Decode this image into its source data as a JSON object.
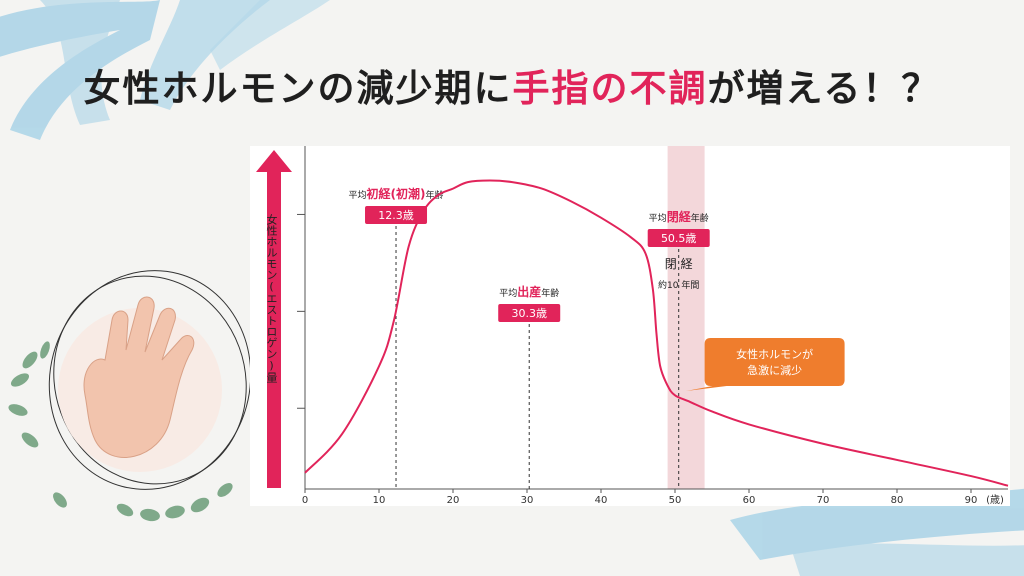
{
  "title": {
    "part1": "女性ホルモンの減少期に",
    "accent": "手指の不調",
    "part2": "が増える！？"
  },
  "colors": {
    "accent": "#e1245a",
    "callout": "#ef7d2d",
    "band": "#f3d7da",
    "brush": "#a9d3e7"
  },
  "chart_data": {
    "type": "line",
    "title": "",
    "ylabel": "女性ホルモン(エストロゲン)量",
    "xlabel": "",
    "x_unit": "(歳)",
    "xlim": [
      0,
      95
    ],
    "ylim": [
      0,
      100
    ],
    "x_ticks": [
      "0",
      "10",
      "20",
      "30",
      "40",
      "50",
      "60",
      "70",
      "80",
      "90"
    ],
    "series": [
      {
        "x": [
          0,
          5,
          10,
          12,
          14,
          16,
          18,
          20,
          22,
          25,
          28,
          32,
          36,
          40,
          44,
          46,
          47,
          47.5,
          48,
          49,
          50,
          52,
          55,
          60,
          70,
          80,
          90,
          95
        ],
        "y": [
          5,
          17,
          38,
          52,
          75,
          86,
          91,
          93,
          95,
          95.5,
          95,
          93,
          89,
          84,
          78,
          73,
          62,
          48,
          38,
          32,
          29,
          27,
          24,
          20,
          14,
          9,
          4,
          1
        ]
      }
    ],
    "menopause_band": [
      49,
      54
    ],
    "markers": [
      {
        "x": 12.3,
        "prefix": "平均",
        "em": "初経(初潮)",
        "suffix": "年齢",
        "value": "12.3歳"
      },
      {
        "x": 30.3,
        "prefix": "平均",
        "em": "出産",
        "suffix": "年齢",
        "value": "30.3歳"
      },
      {
        "x": 50.5,
        "prefix": "平均",
        "em": "閉経",
        "suffix": "年齢",
        "value": "50.5歳"
      }
    ],
    "band_label": {
      "title": "閉 経",
      "sub": "約10 年間"
    },
    "callout": {
      "line1": "女性ホルモンが",
      "line2": "急激に減少"
    }
  }
}
